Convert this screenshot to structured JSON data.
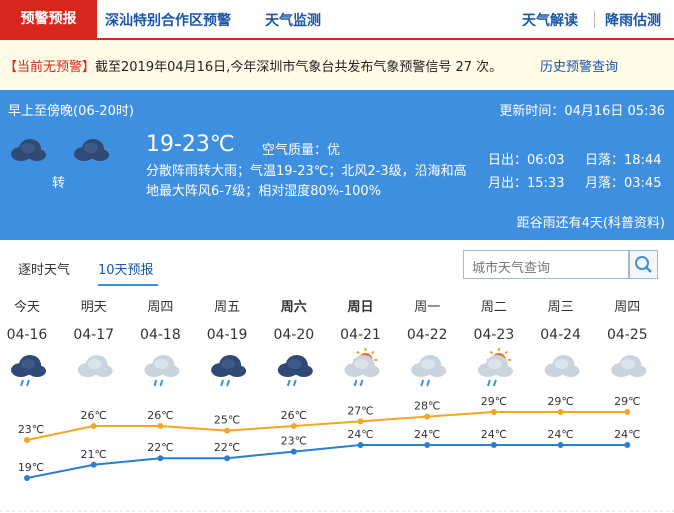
{
  "nav": {
    "tabs": [
      "预警预报",
      "深汕特别合作区预警",
      "天气监测"
    ],
    "right_links": [
      "天气解读",
      "降雨估测"
    ]
  },
  "alert_bar": {
    "status": "【当前无预警】",
    "message": "截至2019年04月16日,今年深圳市气象台共发布气象预警信号 27 次。",
    "link": "历史预警查询"
  },
  "today": {
    "period": "早上至傍晚(06-20时)",
    "update_time": "更新时间：04月16日 05:36",
    "transition": "转",
    "temperature": "19-23℃",
    "air_quality": "空气质量：优",
    "description": "分散阵雨转大雨；气温19-23℃；北风2-3级，沿海和高地最大阵风6-7级；相对湿度80%-100%",
    "sunrise": "日出：06:03",
    "sunset": "日落：18:44",
    "moonrise": "月出：15:33",
    "moonset": "月落：03:45",
    "solar_term": "距谷雨还有4天(科普资料)"
  },
  "tabs": [
    "逐时天气",
    "10天预报"
  ],
  "search_placeholder": "城市天气查询",
  "forecast": {
    "weekdays": [
      "今天",
      "明天",
      "周四",
      "周五",
      "周六",
      "周日",
      "周一",
      "周二",
      "周三",
      "周四"
    ],
    "dates": [
      "04-16",
      "04-17",
      "04-18",
      "04-19",
      "04-20",
      "04-21",
      "04-22",
      "04-23",
      "04-24",
      "04-25"
    ],
    "high": [
      23,
      26,
      26,
      25,
      26,
      27,
      28,
      29,
      29,
      29
    ],
    "high_labels": [
      "23℃",
      "26℃",
      "26℃",
      "25℃",
      "26℃",
      "27℃",
      "28℃",
      "29℃",
      "29℃",
      "29℃"
    ],
    "low": [
      19,
      21,
      22,
      22,
      23,
      24,
      24,
      24,
      24,
      24
    ],
    "low_labels": [
      "19℃",
      "21℃",
      "22℃",
      "22℃",
      "23℃",
      "24℃",
      "24℃",
      "24℃",
      "24℃",
      "24℃"
    ]
  }
}
